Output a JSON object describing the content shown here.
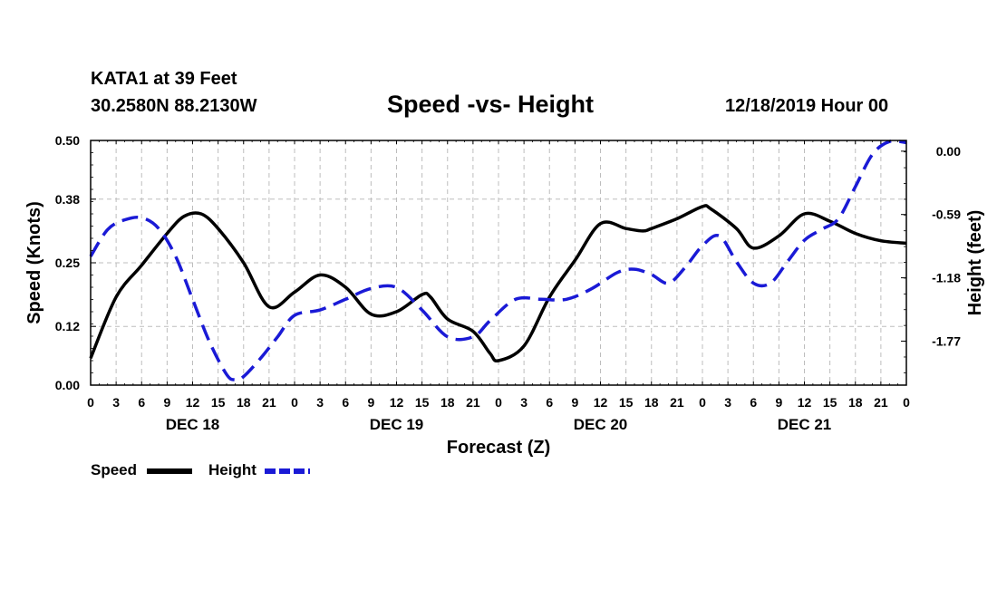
{
  "header": {
    "station": "KATA1 at 39 Feet",
    "coords": "30.2580N 88.2130W",
    "title": "Speed -vs- Height",
    "timestamp": "12/18/2019 Hour 00"
  },
  "legend": {
    "speed_label": "Speed",
    "height_label": "Height"
  },
  "colors": {
    "speed": "#000000",
    "height": "#1a1ad6",
    "grid": "#bdbdbd"
  },
  "chart_data": {
    "type": "line",
    "title": "Speed -vs- Height",
    "xlabel": "Forecast (Z)",
    "ylabel": "Speed (Knots)",
    "y2label": "Height (feet)",
    "x_hour_range": [
      0,
      96
    ],
    "x_tick_step_hours": 3,
    "x_tick_labels": [
      "0",
      "3",
      "6",
      "9",
      "12",
      "15",
      "18",
      "21",
      "0",
      "3",
      "6",
      "9",
      "12",
      "15",
      "18",
      "21",
      "0",
      "3",
      "6",
      "9",
      "12",
      "15",
      "18",
      "21",
      "0",
      "3",
      "6",
      "9",
      "12",
      "15",
      "18",
      "21",
      "0"
    ],
    "day_labels": [
      {
        "label": "DEC 18",
        "center_hour": 12
      },
      {
        "label": "DEC 19",
        "center_hour": 36
      },
      {
        "label": "DEC 20",
        "center_hour": 60
      },
      {
        "label": "DEC 21",
        "center_hour": 84
      }
    ],
    "ylim": [
      0,
      0.5
    ],
    "yticks": [
      0,
      0.12,
      0.25,
      0.38,
      0.5
    ],
    "ytick_labels": [
      "0.00",
      "0.12",
      "0.25",
      "0.38",
      "0.50"
    ],
    "y2lim": [
      -2.18,
      0.1
    ],
    "y2ticks": [
      0,
      -0.59,
      -1.18,
      -1.77
    ],
    "y2tick_labels": [
      "0.00",
      "-0.59",
      "-1.18",
      "-1.77"
    ],
    "grid": true,
    "series": [
      {
        "name": "Speed",
        "axis": "left",
        "style": "solid",
        "x": [
          0,
          3,
          6,
          9,
          11,
          13,
          15,
          18,
          21,
          24,
          27,
          30,
          33,
          36,
          39,
          40,
          42,
          45,
          47,
          48,
          51,
          54,
          57,
          60,
          63,
          65,
          66,
          69,
          72,
          73,
          76,
          78,
          81,
          84,
          87,
          90,
          93,
          96
        ],
        "y": [
          0.055,
          0.18,
          0.245,
          0.31,
          0.345,
          0.35,
          0.32,
          0.25,
          0.16,
          0.19,
          0.225,
          0.2,
          0.145,
          0.15,
          0.185,
          0.18,
          0.135,
          0.11,
          0.065,
          0.05,
          0.08,
          0.18,
          0.255,
          0.33,
          0.32,
          0.315,
          0.32,
          0.34,
          0.365,
          0.36,
          0.32,
          0.28,
          0.305,
          0.35,
          0.335,
          0.31,
          0.295,
          0.29
        ]
      },
      {
        "name": "Height",
        "axis": "right",
        "style": "dashed",
        "x": [
          0,
          2,
          4,
          6,
          8,
          10,
          12,
          14,
          16,
          17,
          18,
          20,
          22,
          24,
          27,
          30,
          33,
          36,
          39,
          42,
          45,
          47,
          50,
          53,
          56,
          59,
          62,
          64,
          66,
          68,
          70,
          72,
          74,
          76,
          78,
          80,
          82,
          84,
          86,
          88,
          90,
          92,
          94,
          96
        ],
        "y": [
          -0.98,
          -0.73,
          -0.64,
          -0.62,
          -0.72,
          -0.98,
          -1.38,
          -1.78,
          -2.08,
          -2.13,
          -2.1,
          -1.93,
          -1.73,
          -1.53,
          -1.48,
          -1.38,
          -1.28,
          -1.27,
          -1.48,
          -1.73,
          -1.73,
          -1.58,
          -1.38,
          -1.38,
          -1.38,
          -1.28,
          -1.13,
          -1.1,
          -1.15,
          -1.23,
          -1.08,
          -0.88,
          -0.79,
          -1.03,
          -1.23,
          -1.23,
          -1.03,
          -0.83,
          -0.73,
          -0.63,
          -0.33,
          -0.03,
          0.09,
          0.08
        ]
      }
    ]
  }
}
